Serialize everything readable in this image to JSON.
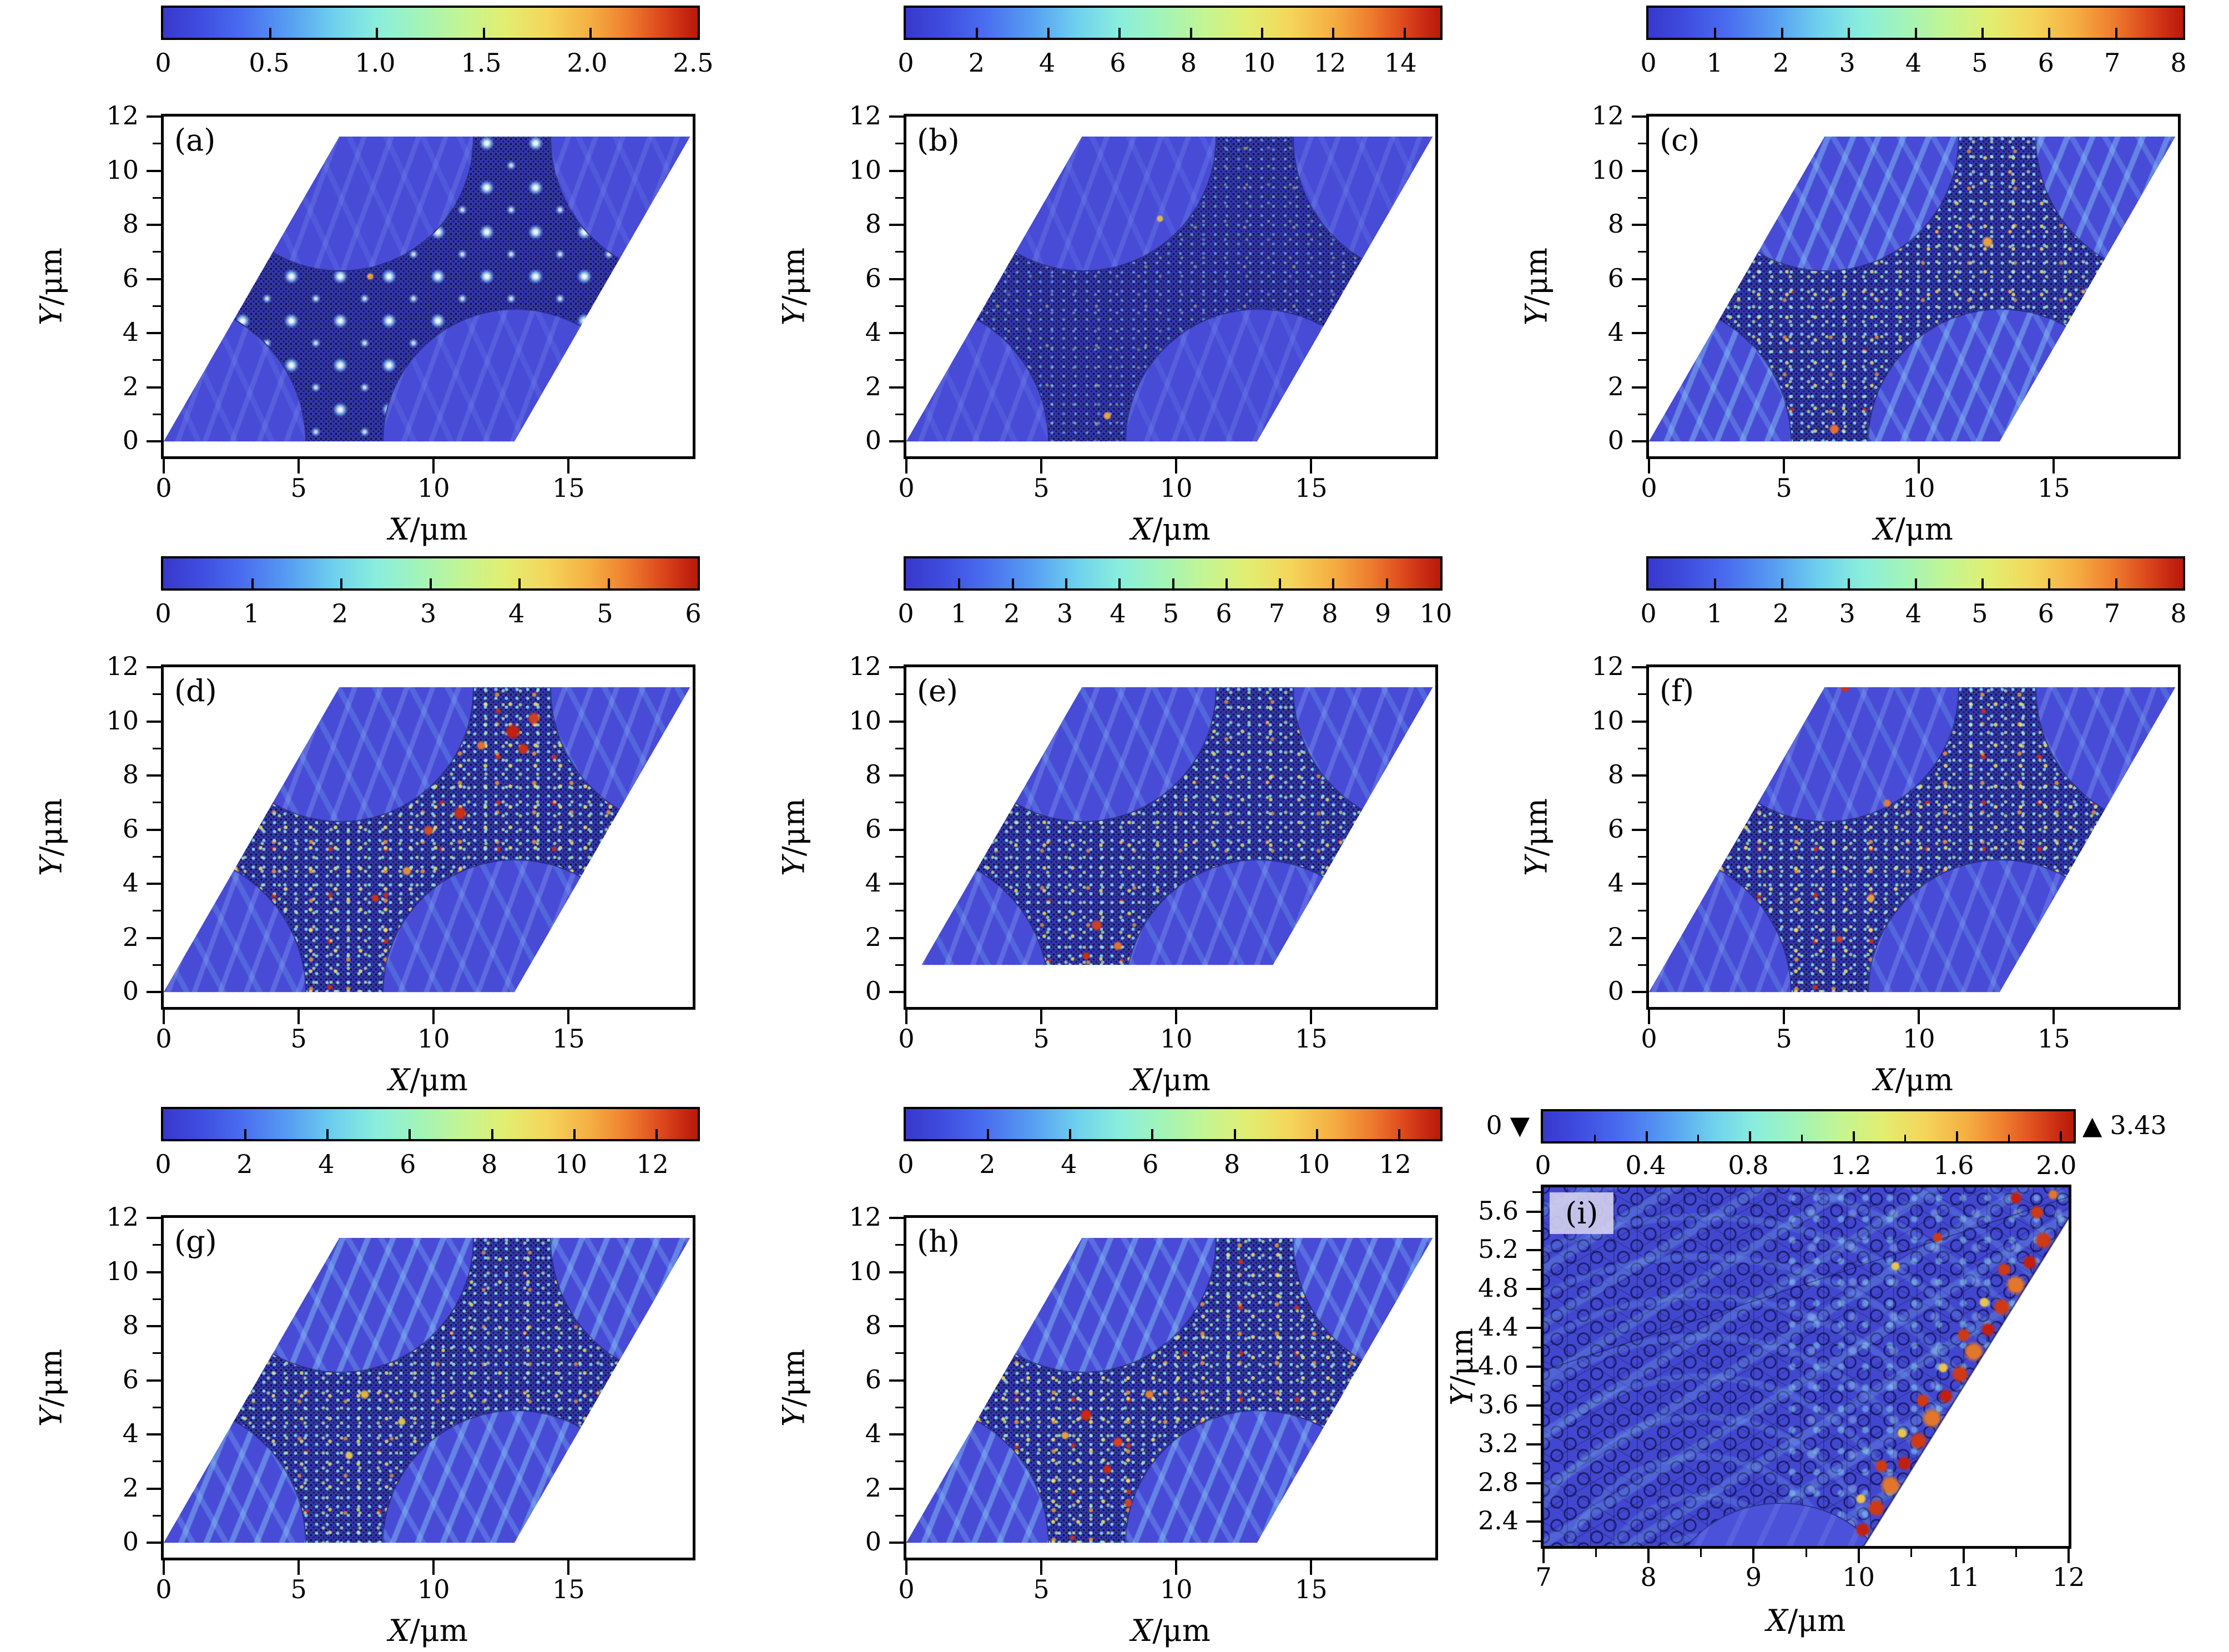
{
  "figure": {
    "type": "3x3 grid of simulated field-amplitude heatmaps on a rhombic supercell",
    "x_label_var": "X",
    "x_label_unit": "/μm",
    "y_label_var": "Y",
    "y_label_unit": "/μm"
  },
  "panels": [
    {
      "id": "a",
      "label": "(a)",
      "colorbar": {
        "max": 2.5,
        "values": [
          0,
          0.5,
          1,
          1.5,
          2,
          2.5
        ],
        "labels": [
          "0",
          "0.5",
          "1.0",
          "1.5",
          "2.0",
          "2.5"
        ]
      },
      "x_ticks": {
        "values": [
          0,
          5,
          10,
          15
        ],
        "labels": [
          "0",
          "5",
          "10",
          "15"
        ]
      },
      "y_ticks": {
        "values": [
          0,
          2,
          4,
          6,
          8,
          10,
          12
        ],
        "labels": [
          "0",
          "2",
          "4",
          "6",
          "8",
          "10",
          "12"
        ]
      }
    },
    {
      "id": "b",
      "label": "(b)",
      "colorbar": {
        "max": 15,
        "values": [
          0,
          2,
          4,
          6,
          8,
          10,
          12,
          14
        ],
        "labels": [
          "0",
          "2",
          "4",
          "6",
          "8",
          "10",
          "12",
          "14"
        ]
      },
      "x_ticks": {
        "values": [
          0,
          5,
          10,
          15
        ],
        "labels": [
          "0",
          "5",
          "10",
          "15"
        ]
      },
      "y_ticks": {
        "values": [
          0,
          2,
          4,
          6,
          8,
          10,
          12
        ],
        "labels": [
          "0",
          "2",
          "4",
          "6",
          "8",
          "10",
          "12"
        ]
      }
    },
    {
      "id": "c",
      "label": "(c)",
      "colorbar": {
        "max": 8,
        "values": [
          0,
          1,
          2,
          3,
          4,
          5,
          6,
          7,
          8
        ],
        "labels": [
          "0",
          "1",
          "2",
          "3",
          "4",
          "5",
          "6",
          "7",
          "8"
        ]
      },
      "x_ticks": {
        "values": [
          0,
          5,
          10,
          15
        ],
        "labels": [
          "0",
          "5",
          "10",
          "15"
        ]
      },
      "y_ticks": {
        "values": [
          0,
          2,
          4,
          6,
          8,
          10,
          12
        ],
        "labels": [
          "0",
          "2",
          "4",
          "6",
          "8",
          "10",
          "12"
        ]
      }
    },
    {
      "id": "d",
      "label": "(d)",
      "colorbar": {
        "max": 6,
        "values": [
          0,
          1,
          2,
          3,
          4,
          5,
          6
        ],
        "labels": [
          "0",
          "1",
          "2",
          "3",
          "4",
          "5",
          "6"
        ]
      },
      "x_ticks": {
        "values": [
          0,
          5,
          10,
          15
        ],
        "labels": [
          "0",
          "5",
          "10",
          "15"
        ]
      },
      "y_ticks": {
        "values": [
          0,
          2,
          4,
          6,
          8,
          10,
          12
        ],
        "labels": [
          "0",
          "2",
          "4",
          "6",
          "8",
          "10",
          "12"
        ]
      }
    },
    {
      "id": "e",
      "label": "(e)",
      "colorbar": {
        "max": 10,
        "values": [
          0,
          1,
          2,
          3,
          4,
          5,
          6,
          7,
          8,
          9,
          10
        ],
        "labels": [
          "0",
          "1",
          "2",
          "3",
          "4",
          "5",
          "6",
          "7",
          "8",
          "9",
          "10"
        ]
      },
      "x_ticks": {
        "values": [
          0,
          5,
          10,
          15
        ],
        "labels": [
          "0",
          "5",
          "10",
          "15"
        ]
      },
      "y_ticks": {
        "values": [
          0,
          2,
          4,
          6,
          8,
          10,
          12
        ],
        "labels": [
          "0",
          "2",
          "4",
          "6",
          "8",
          "10",
          "12"
        ]
      }
    },
    {
      "id": "f",
      "label": "(f)",
      "colorbar": {
        "max": 8,
        "values": [
          0,
          1,
          2,
          3,
          4,
          5,
          6,
          7,
          8
        ],
        "labels": [
          "0",
          "1",
          "2",
          "3",
          "4",
          "5",
          "6",
          "7",
          "8"
        ]
      },
      "x_ticks": {
        "values": [
          0,
          5,
          10,
          15
        ],
        "labels": [
          "0",
          "5",
          "10",
          "15"
        ]
      },
      "y_ticks": {
        "values": [
          0,
          2,
          4,
          6,
          8,
          10,
          12
        ],
        "labels": [
          "0",
          "2",
          "4",
          "6",
          "8",
          "10",
          "12"
        ]
      }
    },
    {
      "id": "g",
      "label": "(g)",
      "colorbar": {
        "max": 13,
        "values": [
          0,
          2,
          4,
          6,
          8,
          10,
          12
        ],
        "labels": [
          "0",
          "2",
          "4",
          "6",
          "8",
          "10",
          "12"
        ]
      },
      "x_ticks": {
        "values": [
          0,
          5,
          10,
          15
        ],
        "labels": [
          "0",
          "5",
          "10",
          "15"
        ]
      },
      "y_ticks": {
        "values": [
          0,
          2,
          4,
          6,
          8,
          10,
          12
        ],
        "labels": [
          "0",
          "2",
          "4",
          "6",
          "8",
          "10",
          "12"
        ]
      }
    },
    {
      "id": "h",
      "label": "(h)",
      "colorbar": {
        "max": 13,
        "values": [
          0,
          2,
          4,
          6,
          8,
          10,
          12
        ],
        "labels": [
          "0",
          "2",
          "4",
          "6",
          "8",
          "10",
          "12"
        ]
      },
      "x_ticks": {
        "values": [
          0,
          5,
          10,
          15
        ],
        "labels": [
          "0",
          "5",
          "10",
          "15"
        ]
      },
      "y_ticks": {
        "values": [
          0,
          2,
          4,
          6,
          8,
          10,
          12
        ],
        "labels": [
          "0",
          "2",
          "4",
          "6",
          "8",
          "10",
          "12"
        ]
      }
    },
    {
      "id": "i",
      "label": "(i)",
      "colorbar": {
        "max": 2.05,
        "values": [
          0,
          0.4,
          0.8,
          1.2,
          1.6,
          2.0
        ],
        "labels": [
          "0",
          "0.4",
          "0.8",
          "1.2",
          "1.6",
          "2.0"
        ],
        "under_symbol": "▼",
        "under_label": "0",
        "over_symbol": "▲",
        "over_label": "3.43"
      },
      "x_ticks": {
        "values": [
          7,
          8,
          9,
          10,
          11,
          12
        ],
        "labels": [
          "7",
          "8",
          "9",
          "10",
          "11",
          "12"
        ]
      },
      "y_ticks": {
        "values": [
          5.6,
          5.2,
          4.8,
          4.4,
          4.0,
          3.6,
          3.2,
          2.8,
          2.4
        ],
        "labels": [
          "5.6",
          "5.2",
          "4.8",
          "4.4",
          "4.0",
          "3.6",
          "3.2",
          "2.8",
          "2.4"
        ]
      }
    }
  ],
  "chart_data": [
    {
      "panel": "a",
      "type": "heatmap",
      "title": "(a)",
      "x_label": "X/μm",
      "y_label": "Y/μm",
      "x_range_shown": [
        0,
        19.6
      ],
      "y_range_shown": [
        0,
        12
      ],
      "x_ticks": [
        0,
        5,
        10,
        15
      ],
      "y_ticks": [
        0,
        2,
        4,
        6,
        8,
        10,
        12
      ],
      "colorbar": {
        "min": 0,
        "max": 2.5,
        "ticks": [
          0,
          0.5,
          1.0,
          1.5,
          2.0,
          2.5
        ]
      },
      "description": "Low-amplitude blue field over a rhombic supercell; dark phononic-crystal cross region with a periodic array of bright localized spots; smooth circular regions at the four corners"
    },
    {
      "panel": "b",
      "type": "heatmap",
      "title": "(b)",
      "x_label": "X/μm",
      "y_label": "Y/μm",
      "x_range_shown": [
        0,
        19.6
      ],
      "y_range_shown": [
        0,
        12
      ],
      "x_ticks": [
        0,
        5,
        10,
        15
      ],
      "y_ticks": [
        0,
        2,
        4,
        6,
        8,
        10,
        12
      ],
      "colorbar": {
        "min": 0,
        "max": 15,
        "ticks": [
          0,
          2,
          4,
          6,
          8,
          10,
          12,
          14
        ]
      },
      "description": "Speckled field concentrated in the crystal cross region; faint ripple waves in surrounding smooth circular regions"
    },
    {
      "panel": "c",
      "type": "heatmap",
      "title": "(c)",
      "x_label": "X/μm",
      "y_label": "Y/μm",
      "x_range_shown": [
        0,
        19.6
      ],
      "y_range_shown": [
        0,
        12
      ],
      "x_ticks": [
        0,
        5,
        10,
        15
      ],
      "y_ticks": [
        0,
        2,
        4,
        6,
        8,
        10,
        12
      ],
      "colorbar": {
        "min": 0,
        "max": 8,
        "ticks": [
          0,
          1,
          2,
          3,
          4,
          5,
          6,
          7,
          8
        ]
      },
      "description": "Strong cyan wave streaks radiating in the smooth regions; cyan/yellow speckle in the crystal region with a few orange hot spots"
    },
    {
      "panel": "d",
      "type": "heatmap",
      "title": "(d)",
      "x_label": "X/μm",
      "y_label": "Y/μm",
      "x_range_shown": [
        0,
        19.6
      ],
      "y_range_shown": [
        0,
        12
      ],
      "x_ticks": [
        0,
        5,
        10,
        15
      ],
      "y_ticks": [
        0,
        2,
        4,
        6,
        8,
        10,
        12
      ],
      "colorbar": {
        "min": 0,
        "max": 6,
        "ticks": [
          0,
          1,
          2,
          3,
          4,
          5,
          6
        ]
      },
      "description": "Dense multicolor speckle in the crystal region with red clusters in the upper-right channel"
    },
    {
      "panel": "e",
      "type": "heatmap",
      "title": "(e)",
      "x_label": "X/μm",
      "y_label": "Y/μm",
      "x_range_shown": [
        0,
        19.6
      ],
      "y_range_shown": [
        1,
        12
      ],
      "x_ticks": [
        0,
        5,
        10,
        15
      ],
      "y_ticks": [
        0,
        2,
        4,
        6,
        8,
        10,
        12
      ],
      "colorbar": {
        "min": 0,
        "max": 10,
        "ticks": [
          0,
          1,
          2,
          3,
          4,
          5,
          6,
          7,
          8,
          9,
          10
        ]
      },
      "description": "Domain truncated at y=1; moderate speckle with red/orange spots near bottom channel"
    },
    {
      "panel": "f",
      "type": "heatmap",
      "title": "(f)",
      "x_label": "X/μm",
      "y_label": "Y/μm",
      "x_range_shown": [
        0,
        19.6
      ],
      "y_range_shown": [
        0,
        12
      ],
      "x_ticks": [
        0,
        5,
        10,
        15
      ],
      "y_ticks": [
        0,
        2,
        4,
        6,
        8,
        10,
        12
      ],
      "colorbar": {
        "min": 0,
        "max": 8,
        "ticks": [
          0,
          1,
          2,
          3,
          4,
          5,
          6,
          7,
          8
        ]
      },
      "description": "Speckled crystal region with scattered orange/red spots; one red spot near the top channel"
    },
    {
      "panel": "g",
      "type": "heatmap",
      "title": "(g)",
      "x_label": "X/μm",
      "y_label": "Y/μm",
      "x_range_shown": [
        0,
        19.6
      ],
      "y_range_shown": [
        0,
        12
      ],
      "x_ticks": [
        0,
        5,
        10,
        15
      ],
      "y_ticks": [
        0,
        2,
        4,
        6,
        8,
        10,
        12
      ],
      "colorbar": {
        "min": 0,
        "max": 13,
        "ticks": [
          0,
          2,
          4,
          6,
          8,
          10,
          12
        ]
      },
      "description": "Cyan/yellow speckle throughout the crystal cross; pronounced cyan ripples in smooth regions"
    },
    {
      "panel": "h",
      "type": "heatmap",
      "title": "(h)",
      "x_label": "X/μm",
      "y_label": "Y/μm",
      "x_range_shown": [
        0,
        19.6
      ],
      "y_range_shown": [
        0,
        12
      ],
      "x_ticks": [
        0,
        5,
        10,
        15
      ],
      "y_ticks": [
        0,
        2,
        4,
        6,
        8,
        10,
        12
      ],
      "colorbar": {
        "min": 0,
        "max": 13,
        "ticks": [
          0,
          2,
          4,
          6,
          8,
          10,
          12
        ]
      },
      "description": "Strong yellow/red speckle concentrated in the lower-left part of the crystal cross"
    },
    {
      "panel": "i",
      "type": "heatmap",
      "title": "(i)",
      "x_label": "X/μm",
      "y_label": "Y/μm",
      "x_range_shown": [
        7,
        12
      ],
      "y_range_shown": [
        2.2,
        5.8
      ],
      "x_ticks": [
        7,
        8,
        9,
        10,
        11,
        12
      ],
      "y_ticks": [
        2.4,
        2.8,
        3.2,
        3.6,
        4.0,
        4.4,
        4.8,
        5.2,
        5.6
      ],
      "colorbar": {
        "min": 0,
        "max": 2.0,
        "ticks": [
          0,
          0.4,
          0.8,
          1.2,
          1.6,
          2.0
        ],
        "under_value_marker": 0,
        "over_value_marker": 3.43
      },
      "description": "Zoom on honeycomb lattice edge; red high-amplitude edge states along the 60-degree boundary with white exterior at lower right; smooth circular inclusion at bottom center"
    }
  ]
}
